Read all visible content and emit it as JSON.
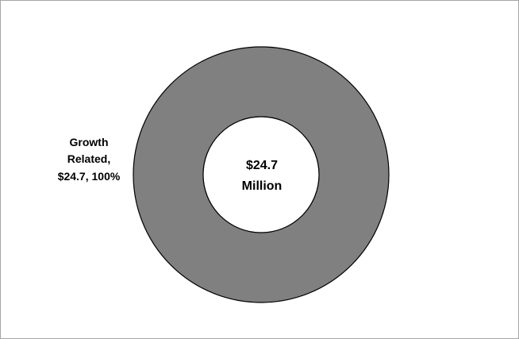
{
  "chart_data": {
    "type": "pie",
    "style": "donut",
    "title": "",
    "center_label": [
      "$24.7",
      "Million"
    ],
    "slices": [
      {
        "name": "Growth Related",
        "value": 24.7,
        "percent": 100,
        "label_lines": [
          "Growth",
          "Related,",
          "$24.7, 100%"
        ],
        "color": "#808080"
      }
    ],
    "colors": {
      "slice": "#808080",
      "outline": "#000000",
      "hole": "#ffffff",
      "frame": "#a6a6a6"
    }
  }
}
